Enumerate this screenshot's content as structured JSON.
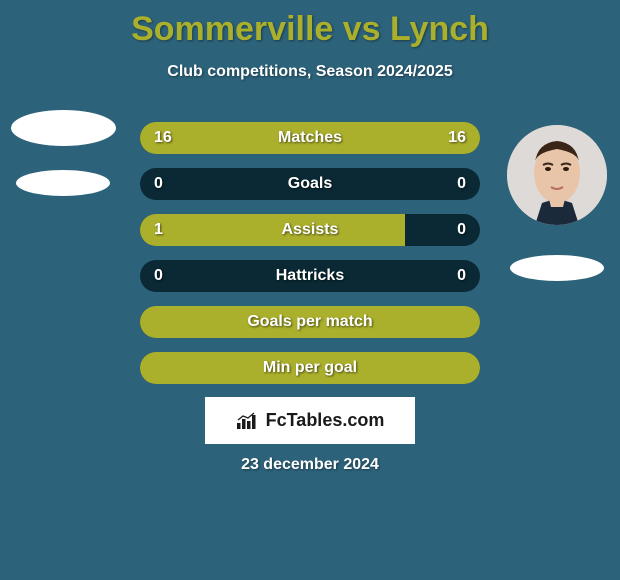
{
  "colors": {
    "background": "#2c627a",
    "title": "#abb02c",
    "subtitle": "#ffffff",
    "bar_dark": "#0a2934",
    "bar_olive": "#abb02c",
    "stat_text": "#ffffff",
    "ellipse": "#ffffff",
    "avatar_bg": "#e9d4c4",
    "date": "#ffffff",
    "logo_bg": "#ffffff",
    "logo_text": "#1a1a1a"
  },
  "title": "Sommerville vs Lynch",
  "subtitle": "Club competitions, Season 2024/2025",
  "date": "23 december 2024",
  "logo": "FcTables.com",
  "stats": [
    {
      "label": "Matches",
      "left_val": "16",
      "right_val": "16",
      "left_pct": 50,
      "right_pct": 50,
      "show_vals": true
    },
    {
      "label": "Goals",
      "left_val": "0",
      "right_val": "0",
      "left_pct": 0,
      "right_pct": 0,
      "show_vals": true
    },
    {
      "label": "Assists",
      "left_val": "1",
      "right_val": "0",
      "left_pct": 78,
      "right_pct": 0,
      "show_vals": true
    },
    {
      "label": "Hattricks",
      "left_val": "0",
      "right_val": "0",
      "left_pct": 0,
      "right_pct": 0,
      "show_vals": true
    },
    {
      "label": "Goals per match",
      "left_val": "",
      "right_val": "",
      "left_pct": 100,
      "right_pct": 0,
      "show_vals": false
    },
    {
      "label": "Min per goal",
      "left_val": "",
      "right_val": "",
      "left_pct": 100,
      "right_pct": 0,
      "show_vals": false
    }
  ]
}
